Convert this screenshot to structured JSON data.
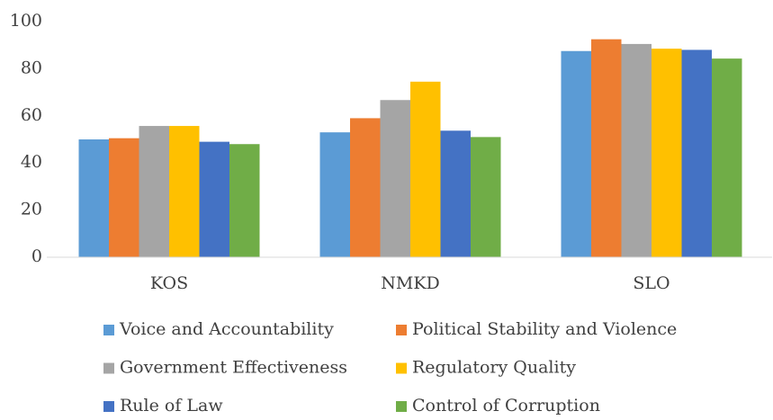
{
  "chart_data": {
    "type": "bar",
    "categories": [
      "KOS",
      "NMKD",
      "SLO"
    ],
    "series": [
      {
        "name": "Voice and Accountability",
        "color": "#5b9bd5",
        "values": [
          50,
          53,
          87.5
        ]
      },
      {
        "name": "Political Stability and Violence",
        "color": "#ed7d31",
        "values": [
          50.5,
          59,
          92.5
        ]
      },
      {
        "name": "Government Effectiveness",
        "color": "#a5a5a5",
        "values": [
          55.7,
          66.7,
          90.5
        ]
      },
      {
        "name": "Regulatory Quality",
        "color": "#ffc000",
        "values": [
          55.7,
          74.5,
          88.5
        ]
      },
      {
        "name": "Rule of Law",
        "color": "#4472c4",
        "values": [
          49,
          53.7,
          88
        ]
      },
      {
        "name": "Control of Corruption",
        "color": "#70ad47",
        "values": [
          48,
          51,
          84.3
        ]
      }
    ],
    "ylim": [
      0,
      100
    ],
    "yticks": [
      0,
      20,
      40,
      60,
      80,
      100
    ],
    "grid": false
  }
}
